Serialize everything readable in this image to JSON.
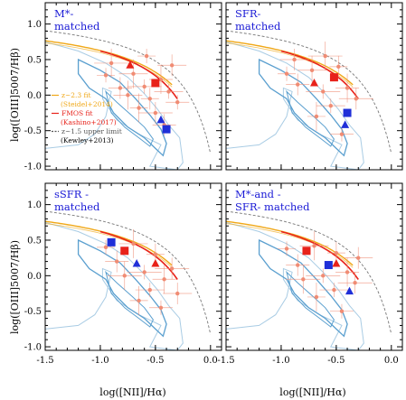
{
  "figure": {
    "ylabel": "log([OIII]5007/Hβ)",
    "xlabel": "log([NII]/Hα)",
    "xticks": [
      "-1.5",
      "-1.0",
      "-0.5",
      "0.0"
    ],
    "yticks": [
      "1.0",
      "0.5",
      "0.0",
      "-0.5",
      "-1.0"
    ],
    "legend": [
      {
        "label": "z~2.3 fit",
        "color": "#f0a818",
        "style": "solid"
      },
      {
        "label": "(Steidel+2014)",
        "color": "#f0a818",
        "style": "none"
      },
      {
        "label": "FMOS fit",
        "color": "#e8221a",
        "style": "solid"
      },
      {
        "label": "(Kashino+2017)",
        "color": "#e8221a",
        "style": "none"
      },
      {
        "label": "z~1.5 upper limit",
        "color": "#555555",
        "style": "dashed"
      },
      {
        "label": "(Kewley+2013)",
        "color": "#000000",
        "style": "none"
      }
    ],
    "colors": {
      "square_red": "#e8221a",
      "square_blue": "#1f2fd8",
      "points": "#f08c74",
      "contour_outer": "#a9cce4",
      "contour_inner": "#5a9fcf",
      "steidel": "#f0a818",
      "kashino": "#e8221a",
      "kewley": "#777777"
    }
  },
  "chart_data": [
    {
      "type": "scatter",
      "panel_label": [
        "M*-",
        "matched"
      ],
      "xlim": [
        -1.5,
        0.1
      ],
      "ylim": [
        -1.05,
        1.3
      ],
      "series": [
        {
          "name": "",
          "marker": "square",
          "color": "red",
          "x": -0.5,
          "y": 0.17
        },
        {
          "name": "",
          "marker": "triangle",
          "color": "red",
          "x": -0.73,
          "y": 0.42
        },
        {
          "name": "",
          "marker": "square",
          "color": "blue",
          "x": -0.4,
          "y": -0.48
        },
        {
          "name": "",
          "marker": "triangle",
          "color": "blue",
          "x": -0.45,
          "y": -0.35
        }
      ],
      "background_points": [
        {
          "x": -0.95,
          "y": 0.28
        },
        {
          "x": -0.82,
          "y": 0.1
        },
        {
          "x": -0.7,
          "y": 0.3
        },
        {
          "x": -0.6,
          "y": 0.12
        },
        {
          "x": -0.55,
          "y": -0.05
        },
        {
          "x": -0.45,
          "y": 0.22
        },
        {
          "x": -0.38,
          "y": 0.05
        },
        {
          "x": -0.5,
          "y": -0.25
        },
        {
          "x": -0.65,
          "y": -0.18
        },
        {
          "x": -0.3,
          "y": -0.1
        },
        {
          "x": -0.35,
          "y": 0.42
        },
        {
          "x": -0.9,
          "y": 0.45
        },
        {
          "x": -0.58,
          "y": 0.55
        },
        {
          "x": -0.42,
          "y": -0.42
        },
        {
          "x": -0.75,
          "y": 0.0
        }
      ]
    },
    {
      "type": "scatter",
      "panel_label": [
        "SFR-",
        "matched"
      ],
      "xlim": [
        -1.5,
        0.1
      ],
      "ylim": [
        -1.05,
        1.3
      ],
      "series": [
        {
          "name": "",
          "marker": "square",
          "color": "red",
          "x": -0.52,
          "y": 0.25
        },
        {
          "name": "",
          "marker": "triangle",
          "color": "red",
          "x": -0.7,
          "y": 0.17
        },
        {
          "name": "",
          "marker": "square",
          "color": "blue",
          "x": -0.4,
          "y": -0.25
        },
        {
          "name": "",
          "marker": "triangle",
          "color": "blue",
          "x": -0.42,
          "y": -0.42
        }
      ],
      "background_points": [
        {
          "x": -0.95,
          "y": 0.3
        },
        {
          "x": -0.85,
          "y": 0.15
        },
        {
          "x": -0.72,
          "y": 0.35
        },
        {
          "x": -0.62,
          "y": 0.05
        },
        {
          "x": -0.48,
          "y": 0.4
        },
        {
          "x": -0.4,
          "y": 0.1
        },
        {
          "x": -0.55,
          "y": -0.15
        },
        {
          "x": -0.32,
          "y": -0.05
        },
        {
          "x": -0.68,
          "y": -0.3
        },
        {
          "x": -0.45,
          "y": -0.55
        },
        {
          "x": -0.88,
          "y": 0.5
        },
        {
          "x": -0.6,
          "y": 0.55
        }
      ]
    },
    {
      "type": "scatter",
      "panel_label": [
        "sSFR -",
        "matched"
      ],
      "xlim": [
        -1.5,
        0.1
      ],
      "ylim": [
        -1.05,
        1.3
      ],
      "series": [
        {
          "name": "",
          "marker": "square",
          "color": "red",
          "x": -0.78,
          "y": 0.35
        },
        {
          "name": "",
          "marker": "triangle",
          "color": "red",
          "x": -0.5,
          "y": 0.17
        },
        {
          "name": "",
          "marker": "square",
          "color": "blue",
          "x": -0.9,
          "y": 0.47
        },
        {
          "name": "",
          "marker": "triangle",
          "color": "blue",
          "x": -0.67,
          "y": 0.17
        }
      ],
      "background_points": [
        {
          "x": -0.95,
          "y": 0.4
        },
        {
          "x": -0.85,
          "y": 0.2
        },
        {
          "x": -0.7,
          "y": 0.45
        },
        {
          "x": -0.6,
          "y": 0.05
        },
        {
          "x": -0.5,
          "y": 0.3
        },
        {
          "x": -0.42,
          "y": -0.05
        },
        {
          "x": -0.55,
          "y": -0.2
        },
        {
          "x": -0.35,
          "y": 0.1
        },
        {
          "x": -0.65,
          "y": -0.35
        },
        {
          "x": -0.45,
          "y": -0.45
        },
        {
          "x": -0.3,
          "y": -0.25
        },
        {
          "x": -0.78,
          "y": 0.0
        }
      ]
    },
    {
      "type": "scatter",
      "panel_label": [
        "M*-and -",
        "SFR- matched"
      ],
      "xlim": [
        -1.5,
        0.1
      ],
      "ylim": [
        -1.05,
        1.3
      ],
      "series": [
        {
          "name": "",
          "marker": "square",
          "color": "red",
          "x": -0.77,
          "y": 0.35
        },
        {
          "name": "",
          "marker": "triangle",
          "color": "red",
          "x": -0.5,
          "y": 0.17
        },
        {
          "name": "",
          "marker": "square",
          "color": "blue",
          "x": -0.57,
          "y": 0.15
        },
        {
          "name": "",
          "marker": "triangle",
          "color": "blue",
          "x": -0.38,
          "y": -0.22
        }
      ],
      "background_points": [
        {
          "x": -0.95,
          "y": 0.38
        },
        {
          "x": -0.85,
          "y": 0.15
        },
        {
          "x": -0.7,
          "y": 0.42
        },
        {
          "x": -0.62,
          "y": 0.0
        },
        {
          "x": -0.5,
          "y": 0.32
        },
        {
          "x": -0.4,
          "y": 0.05
        },
        {
          "x": -0.52,
          "y": -0.2
        },
        {
          "x": -0.33,
          "y": -0.1
        },
        {
          "x": -0.68,
          "y": -0.3
        },
        {
          "x": -0.45,
          "y": -0.5
        },
        {
          "x": -0.3,
          "y": 0.25
        },
        {
          "x": -0.8,
          "y": -0.05
        }
      ]
    }
  ]
}
